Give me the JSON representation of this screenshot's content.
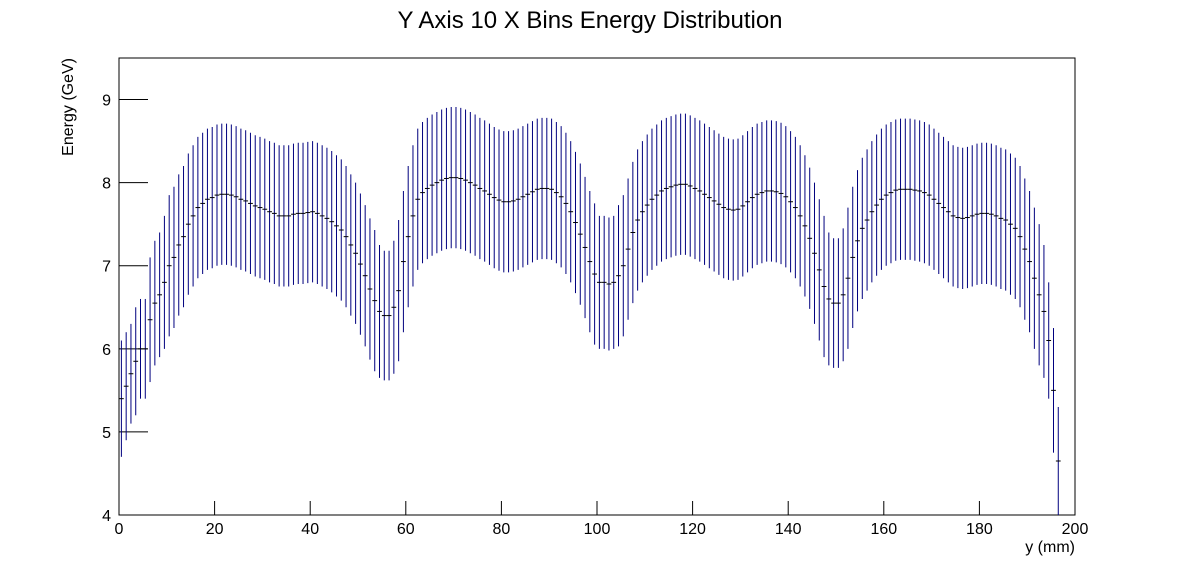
{
  "chart_data": {
    "type": "errorbar-histogram",
    "title": "Y Axis 10 X Bins Energy Distribution",
    "xlabel": "y (mm)",
    "ylabel": "Energy (GeV)",
    "color": "#00007f",
    "xlim": [
      0,
      200
    ],
    "ylim": [
      4,
      9.5
    ],
    "xticks": [
      0,
      20,
      40,
      60,
      80,
      100,
      120,
      140,
      160,
      180,
      200
    ],
    "yticks": [
      4,
      5,
      6,
      7,
      8,
      9
    ],
    "bins": [
      0,
      1,
      2,
      3,
      4,
      5,
      6,
      7,
      8,
      9,
      10,
      11,
      12,
      13,
      14,
      15,
      16,
      17,
      18,
      19,
      20,
      21,
      22,
      23,
      24,
      25,
      26,
      27,
      28,
      29,
      30,
      31,
      32,
      33,
      34,
      35,
      36,
      37,
      38,
      39,
      40,
      41,
      42,
      43,
      44,
      45,
      46,
      47,
      48,
      49,
      50,
      51,
      52,
      53,
      54,
      55,
      56,
      57,
      58,
      59,
      60,
      61,
      62,
      63,
      64,
      65,
      66,
      67,
      68,
      69,
      70,
      71,
      72,
      73,
      74,
      75,
      76,
      77,
      78,
      79,
      80,
      81,
      82,
      83,
      84,
      85,
      86,
      87,
      88,
      89,
      90,
      91,
      92,
      93,
      94,
      95,
      96,
      97,
      98,
      99,
      100,
      101,
      102,
      103,
      104,
      105,
      106,
      107,
      108,
      109,
      110,
      111,
      112,
      113,
      114,
      115,
      116,
      117,
      118,
      119,
      120,
      121,
      122,
      123,
      124,
      125,
      126,
      127,
      128,
      129,
      130,
      131,
      132,
      133,
      134,
      135,
      136,
      137,
      138,
      139,
      140,
      141,
      142,
      143,
      144,
      145,
      146,
      147,
      148,
      149,
      150,
      151,
      152,
      153,
      154,
      155,
      156,
      157,
      158,
      159,
      160,
      161,
      162,
      163,
      164,
      165,
      166,
      167,
      168,
      169,
      170,
      171,
      172,
      173,
      174,
      175,
      176,
      177,
      178,
      179,
      180,
      181,
      182,
      183,
      184,
      185,
      186,
      187,
      188,
      189,
      190,
      191,
      192,
      193,
      194,
      195,
      196,
      197
    ],
    "values": [
      5.4,
      5.55,
      5.7,
      5.85,
      6.0,
      6.0,
      6.35,
      6.55,
      6.65,
      6.8,
      7.0,
      7.1,
      7.25,
      7.35,
      7.5,
      7.6,
      7.7,
      7.75,
      7.8,
      7.82,
      7.85,
      7.86,
      7.86,
      7.85,
      7.83,
      7.8,
      7.78,
      7.75,
      7.72,
      7.7,
      7.68,
      7.65,
      7.63,
      7.6,
      7.6,
      7.6,
      7.62,
      7.63,
      7.63,
      7.64,
      7.65,
      7.63,
      7.6,
      7.57,
      7.53,
      7.48,
      7.43,
      7.35,
      7.25,
      7.15,
      7.02,
      6.88,
      6.72,
      6.58,
      6.45,
      6.4,
      6.4,
      6.5,
      6.7,
      7.05,
      7.35,
      7.6,
      7.8,
      7.88,
      7.93,
      7.97,
      8.0,
      8.03,
      8.05,
      8.06,
      8.06,
      8.05,
      8.03,
      8.0,
      7.97,
      7.93,
      7.9,
      7.86,
      7.82,
      7.79,
      7.77,
      7.77,
      7.78,
      7.8,
      7.83,
      7.86,
      7.89,
      7.92,
      7.93,
      7.93,
      7.92,
      7.88,
      7.83,
      7.75,
      7.65,
      7.52,
      7.38,
      7.22,
      7.05,
      6.9,
      6.8,
      6.8,
      6.78,
      6.8,
      6.88,
      7.0,
      7.2,
      7.4,
      7.55,
      7.65,
      7.73,
      7.8,
      7.85,
      7.9,
      7.93,
      7.95,
      7.97,
      7.98,
      7.98,
      7.96,
      7.93,
      7.9,
      7.86,
      7.82,
      7.78,
      7.74,
      7.7,
      7.68,
      7.67,
      7.68,
      7.72,
      7.77,
      7.82,
      7.86,
      7.88,
      7.9,
      7.9,
      7.89,
      7.87,
      7.83,
      7.77,
      7.7,
      7.6,
      7.48,
      7.33,
      7.15,
      6.95,
      6.75,
      6.6,
      6.55,
      6.55,
      6.65,
      6.85,
      7.1,
      7.3,
      7.45,
      7.55,
      7.65,
      7.73,
      7.8,
      7.85,
      7.88,
      7.91,
      7.92,
      7.92,
      7.92,
      7.91,
      7.9,
      7.88,
      7.85,
      7.8,
      7.75,
      7.7,
      7.65,
      7.6,
      7.58,
      7.57,
      7.58,
      7.6,
      7.62,
      7.63,
      7.63,
      7.62,
      7.6,
      7.57,
      7.55,
      7.5,
      7.45,
      7.35,
      7.2,
      7.05,
      6.85,
      6.65,
      6.45,
      6.1,
      5.5,
      4.65
    ],
    "errors": [
      0.7,
      0.65,
      0.6,
      0.65,
      0.6,
      0.6,
      0.75,
      0.75,
      0.75,
      0.8,
      0.85,
      0.85,
      0.85,
      0.85,
      0.85,
      0.85,
      0.85,
      0.85,
      0.85,
      0.85,
      0.85,
      0.85,
      0.85,
      0.85,
      0.85,
      0.85,
      0.85,
      0.85,
      0.85,
      0.85,
      0.85,
      0.85,
      0.85,
      0.85,
      0.85,
      0.85,
      0.85,
      0.85,
      0.85,
      0.85,
      0.85,
      0.85,
      0.85,
      0.85,
      0.85,
      0.85,
      0.85,
      0.85,
      0.85,
      0.85,
      0.85,
      0.85,
      0.85,
      0.85,
      0.8,
      0.78,
      0.78,
      0.8,
      0.85,
      0.85,
      0.85,
      0.85,
      0.85,
      0.85,
      0.85,
      0.85,
      0.85,
      0.85,
      0.85,
      0.85,
      0.85,
      0.85,
      0.85,
      0.85,
      0.85,
      0.85,
      0.85,
      0.85,
      0.85,
      0.85,
      0.85,
      0.85,
      0.85,
      0.85,
      0.85,
      0.85,
      0.85,
      0.85,
      0.85,
      0.85,
      0.85,
      0.85,
      0.85,
      0.85,
      0.85,
      0.85,
      0.85,
      0.85,
      0.85,
      0.85,
      0.8,
      0.8,
      0.8,
      0.8,
      0.85,
      0.85,
      0.85,
      0.85,
      0.85,
      0.85,
      0.85,
      0.85,
      0.85,
      0.85,
      0.85,
      0.85,
      0.85,
      0.85,
      0.85,
      0.85,
      0.85,
      0.85,
      0.85,
      0.85,
      0.85,
      0.85,
      0.85,
      0.85,
      0.85,
      0.85,
      0.85,
      0.85,
      0.85,
      0.85,
      0.85,
      0.85,
      0.85,
      0.85,
      0.85,
      0.85,
      0.85,
      0.85,
      0.85,
      0.85,
      0.85,
      0.85,
      0.85,
      0.85,
      0.8,
      0.78,
      0.78,
      0.8,
      0.85,
      0.85,
      0.85,
      0.85,
      0.85,
      0.85,
      0.85,
      0.85,
      0.85,
      0.85,
      0.85,
      0.85,
      0.85,
      0.85,
      0.85,
      0.85,
      0.85,
      0.85,
      0.85,
      0.85,
      0.85,
      0.85,
      0.85,
      0.85,
      0.85,
      0.85,
      0.85,
      0.85,
      0.85,
      0.85,
      0.85,
      0.85,
      0.85,
      0.85,
      0.85,
      0.85,
      0.85,
      0.85,
      0.85,
      0.85,
      0.85,
      0.8,
      0.7,
      0.75,
      0.65
    ]
  }
}
